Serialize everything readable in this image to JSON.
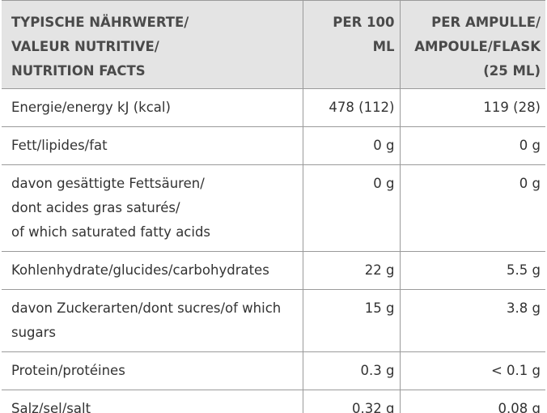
{
  "table": {
    "header": [
      [
        "TYPISCHE NÄHRWERTE/",
        "VALEUR NUTRITIVE/",
        "NUTRITION FACTS"
      ],
      [
        "PER 100 ML"
      ],
      [
        "PER AMPULLE/",
        "AMPOULE/FLASK",
        "(25 ML)"
      ]
    ],
    "rows": [
      [
        "Energie/energy kJ (kcal)",
        "478 (112)",
        "119 (28)"
      ],
      [
        "Fett/lipides/fat",
        "0 g",
        "0 g"
      ],
      [
        [
          "davon gesättigte Fettsäuren/",
          "dont acides gras saturés/",
          "of which saturated fatty acids"
        ],
        "0 g",
        "0 g"
      ],
      [
        "Kohlenhydrate/glucides/carbohydrates",
        "22 g",
        "5.5 g"
      ],
      [
        "davon Zuckerarten/dont sucres/of which sugars",
        "15 g",
        "3.8 g"
      ],
      [
        "Protein/protéines",
        "0.3 g",
        "< 0.1 g"
      ],
      [
        "Salz/sel/salt",
        "0.32 g",
        "0.08 g"
      ]
    ]
  }
}
